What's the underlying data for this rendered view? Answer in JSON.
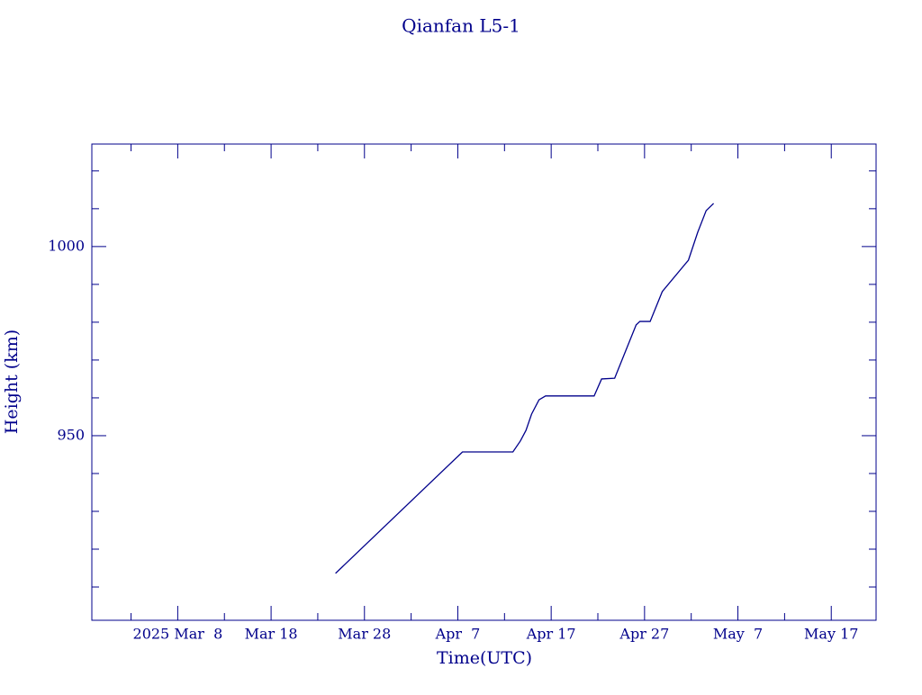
{
  "chart_data": {
    "type": "line",
    "title": "Qianfan L5-1",
    "x_label": "Time(UTC)",
    "y_label": "Height (km)",
    "xlim": [
      57.8,
      141.8
    ],
    "ylim": [
      901.2,
      1027.1
    ],
    "xticks": [
      {
        "value": 67,
        "label": "2025 Mar  8"
      },
      {
        "value": 77,
        "label": "Mar 18"
      },
      {
        "value": 87,
        "label": "Mar 28"
      },
      {
        "value": 97,
        "label": "Apr  7"
      },
      {
        "value": 107,
        "label": "Apr 17"
      },
      {
        "value": 117,
        "label": "Apr 27"
      },
      {
        "value": 127,
        "label": "May  7"
      },
      {
        "value": 137,
        "label": "May 17"
      }
    ],
    "xminorticks": [
      62,
      72,
      82,
      92,
      102,
      112,
      122,
      132,
      142
    ],
    "yticks": [
      950,
      1000
    ],
    "yminorticks": [
      910,
      920,
      930,
      940,
      960,
      970,
      980,
      990,
      1010,
      1020
    ],
    "color": "#00008b",
    "series": [
      {
        "name": "Qianfan L5-1",
        "color": "#00008b",
        "x": [
          83.9,
          97.5,
          102.9,
          103.7,
          104.3,
          104.9,
          105.7,
          106.4,
          111.6,
          112.4,
          113.8,
          116.1,
          116.5,
          117.6,
          118.9,
          121.7,
          122.7,
          123.6,
          124.4
        ],
        "values": [
          913.6,
          945.7,
          945.7,
          948.6,
          951.4,
          955.7,
          959.5,
          960.5,
          960.5,
          965.0,
          965.2,
          979.3,
          980.2,
          980.2,
          988.1,
          996.4,
          1003.8,
          1009.5,
          1011.4
        ]
      }
    ]
  }
}
